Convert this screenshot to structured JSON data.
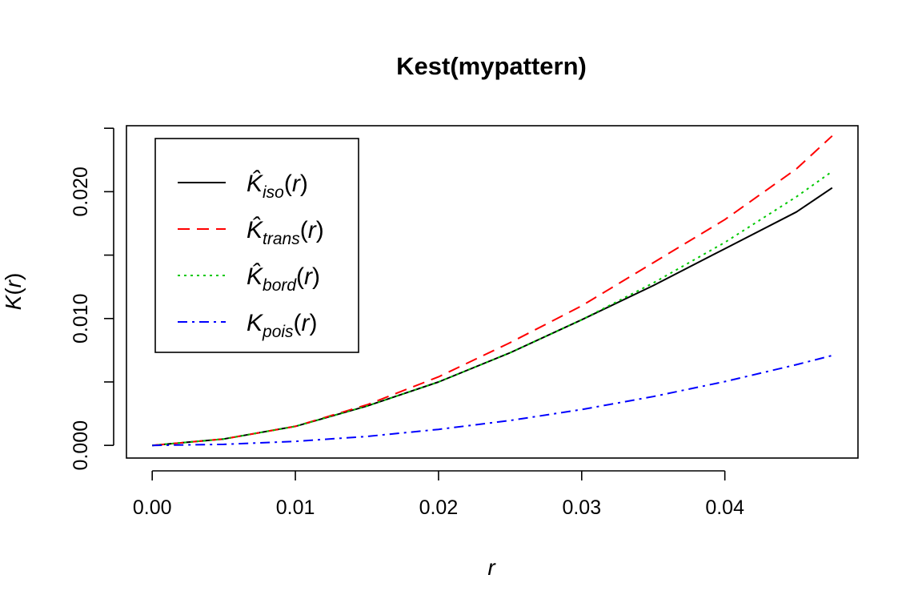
{
  "chart_data": {
    "type": "line",
    "title": "Kest(mypattern)",
    "xlabel": "r",
    "ylabel": "K(r)",
    "xlim": [
      -0.0018,
      0.0493
    ],
    "ylim": [
      -0.001,
      0.0252
    ],
    "xticks": [
      0.0,
      0.01,
      0.02,
      0.03,
      0.04
    ],
    "xtick_labels": [
      "0.00",
      "0.01",
      "0.02",
      "0.03",
      "0.04"
    ],
    "yticks": [
      0.0,
      0.005,
      0.01,
      0.015,
      0.02,
      0.025
    ],
    "ytick_labels": [
      "0.000",
      "",
      "0.010",
      "",
      "0.020",
      ""
    ],
    "legend_position": "top-left",
    "grid": false,
    "series": [
      {
        "name": "K̂iso(r)",
        "base": "K̂",
        "sub": "iso",
        "suffix": "(r)",
        "color": "#000000",
        "dash": "none",
        "x": [
          0,
          0.005,
          0.01,
          0.015,
          0.02,
          0.025,
          0.03,
          0.035,
          0.04,
          0.045,
          0.0475
        ],
        "y": [
          0,
          0.0005,
          0.0015,
          0.0031,
          0.005,
          0.0073,
          0.0099,
          0.0126,
          0.0155,
          0.0184,
          0.0203
        ]
      },
      {
        "name": "K̂trans(r)",
        "base": "K̂",
        "sub": "trans",
        "suffix": "(r)",
        "color": "#ff0000",
        "dash": "15,9",
        "x": [
          0,
          0.005,
          0.01,
          0.015,
          0.02,
          0.025,
          0.03,
          0.035,
          0.04,
          0.045,
          0.0475
        ],
        "y": [
          0,
          0.0005,
          0.0015,
          0.0032,
          0.0054,
          0.0081,
          0.011,
          0.0144,
          0.0178,
          0.0218,
          0.0244
        ]
      },
      {
        "name": "K̂bord(r)",
        "base": "K̂",
        "sub": "bord",
        "suffix": "(r)",
        "color": "#00c800",
        "dash": "3,5",
        "x": [
          0,
          0.005,
          0.01,
          0.015,
          0.02,
          0.025,
          0.03,
          0.035,
          0.04,
          0.045,
          0.0475
        ],
        "y": [
          0,
          0.0005,
          0.0015,
          0.0031,
          0.005,
          0.0073,
          0.0099,
          0.0128,
          0.016,
          0.0196,
          0.0216
        ]
      },
      {
        "name": "Kpois(r)",
        "base": "K",
        "sub": "pois",
        "suffix": "(r)",
        "color": "#0000ff",
        "dash": "12,6,3,6",
        "x": [
          0,
          0.005,
          0.01,
          0.015,
          0.02,
          0.025,
          0.03,
          0.035,
          0.04,
          0.045,
          0.0475
        ],
        "y": [
          0,
          7.85e-05,
          0.000314,
          0.000707,
          0.001257,
          0.001963,
          0.002827,
          0.003848,
          0.005027,
          0.006362,
          0.007088
        ]
      }
    ]
  }
}
